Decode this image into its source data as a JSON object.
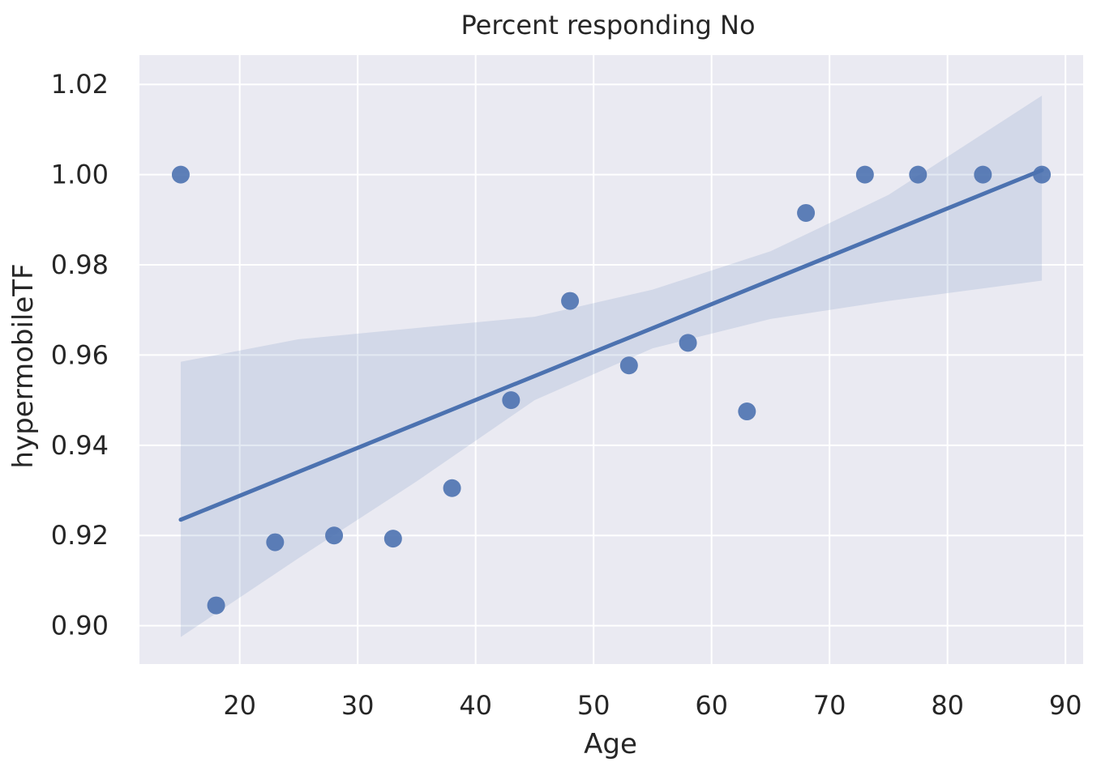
{
  "chart_data": {
    "type": "scatter",
    "title": "Percent responding No",
    "xlabel": "Age",
    "ylabel": "hypermobileTF",
    "xlim": [
      11.5,
      91.5
    ],
    "ylim": [
      0.8915,
      1.0265
    ],
    "xticks": [
      20,
      30,
      40,
      50,
      60,
      70,
      80,
      90
    ],
    "yticks": [
      0.9,
      0.92,
      0.94,
      0.96,
      0.98,
      1.0,
      1.02
    ],
    "ytick_labels": [
      "0.90",
      "0.92",
      "0.94",
      "0.96",
      "0.98",
      "1.00",
      "1.02"
    ],
    "grid": true,
    "background": "#eaeaf2",
    "grid_color": "#ffffff",
    "series": [
      {
        "x": [
          15,
          18,
          23,
          28,
          33,
          38,
          43,
          48,
          53,
          58,
          63,
          68,
          73,
          77.5,
          83,
          88
        ],
        "y": [
          1.0,
          0.9045,
          0.9185,
          0.92,
          0.9193,
          0.9305,
          0.95,
          0.972,
          0.9577,
          0.9627,
          0.9475,
          0.9915,
          1.0,
          1.0,
          1.0,
          1.0
        ],
        "color": "#4c72b0"
      }
    ],
    "regression": {
      "x": [
        15,
        88
      ],
      "y": [
        0.9235,
        1.001
      ],
      "color": "#4c72b0"
    },
    "confidence_band": {
      "color": "#4c72b0",
      "x": [
        15,
        25,
        35,
        45,
        55,
        65,
        75,
        88
      ],
      "upper": [
        0.9585,
        0.9635,
        0.966,
        0.9685,
        0.9745,
        0.983,
        0.9955,
        1.0175
      ],
      "lower": [
        0.8975,
        0.915,
        0.932,
        0.95,
        0.9615,
        0.968,
        0.972,
        0.9765
      ]
    }
  }
}
